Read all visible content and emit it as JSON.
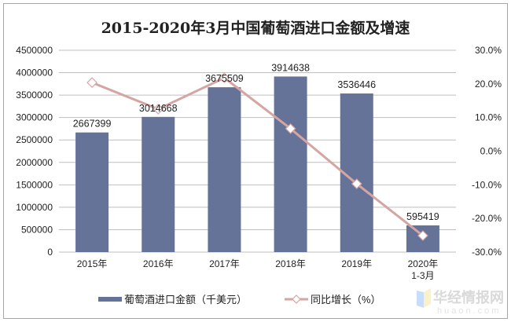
{
  "chart_data": {
    "type": "bar+line",
    "title": "2015-2020年3月中国葡萄酒进口金额及增速",
    "categories": [
      "2015年",
      "2016年",
      "2017年",
      "2018年",
      "2019年",
      "2020年1-3月"
    ],
    "category_lines": [
      [
        "2015年"
      ],
      [
        "2016年"
      ],
      [
        "2017年"
      ],
      [
        "2018年"
      ],
      [
        "2019年"
      ],
      [
        "2020年",
        "1-3月"
      ]
    ],
    "series": [
      {
        "name": "葡萄酒进口金额（千美元）",
        "type": "bar",
        "axis": "left",
        "color": "#667399",
        "values": [
          2667399,
          3014668,
          3675509,
          3914638,
          3536446,
          595419
        ],
        "labels": [
          "2667399",
          "3014668",
          "3675509",
          "3914638",
          "3536446",
          "595419"
        ]
      },
      {
        "name": "同比增长（%）",
        "type": "line",
        "axis": "right",
        "color": "#d4a5a3",
        "values": [
          20.4,
          12.5,
          21.8,
          6.7,
          -9.7,
          -25.1
        ]
      }
    ],
    "left_axis": {
      "min": 0,
      "max": 4500000,
      "step": 500000,
      "ticks": [
        "0",
        "500000",
        "1000000",
        "1500000",
        "2000000",
        "2500000",
        "3000000",
        "3500000",
        "4000000",
        "4500000"
      ]
    },
    "right_axis": {
      "min": -30,
      "max": 30,
      "step": 10,
      "ticks": [
        "-30.0%",
        "-20.0%",
        "-10.0%",
        "0.0%",
        "10.0%",
        "20.0%",
        "30.0%"
      ]
    },
    "grid": true,
    "legend_placement": "bottom",
    "watermark": "华经情报网 huaon.com"
  }
}
